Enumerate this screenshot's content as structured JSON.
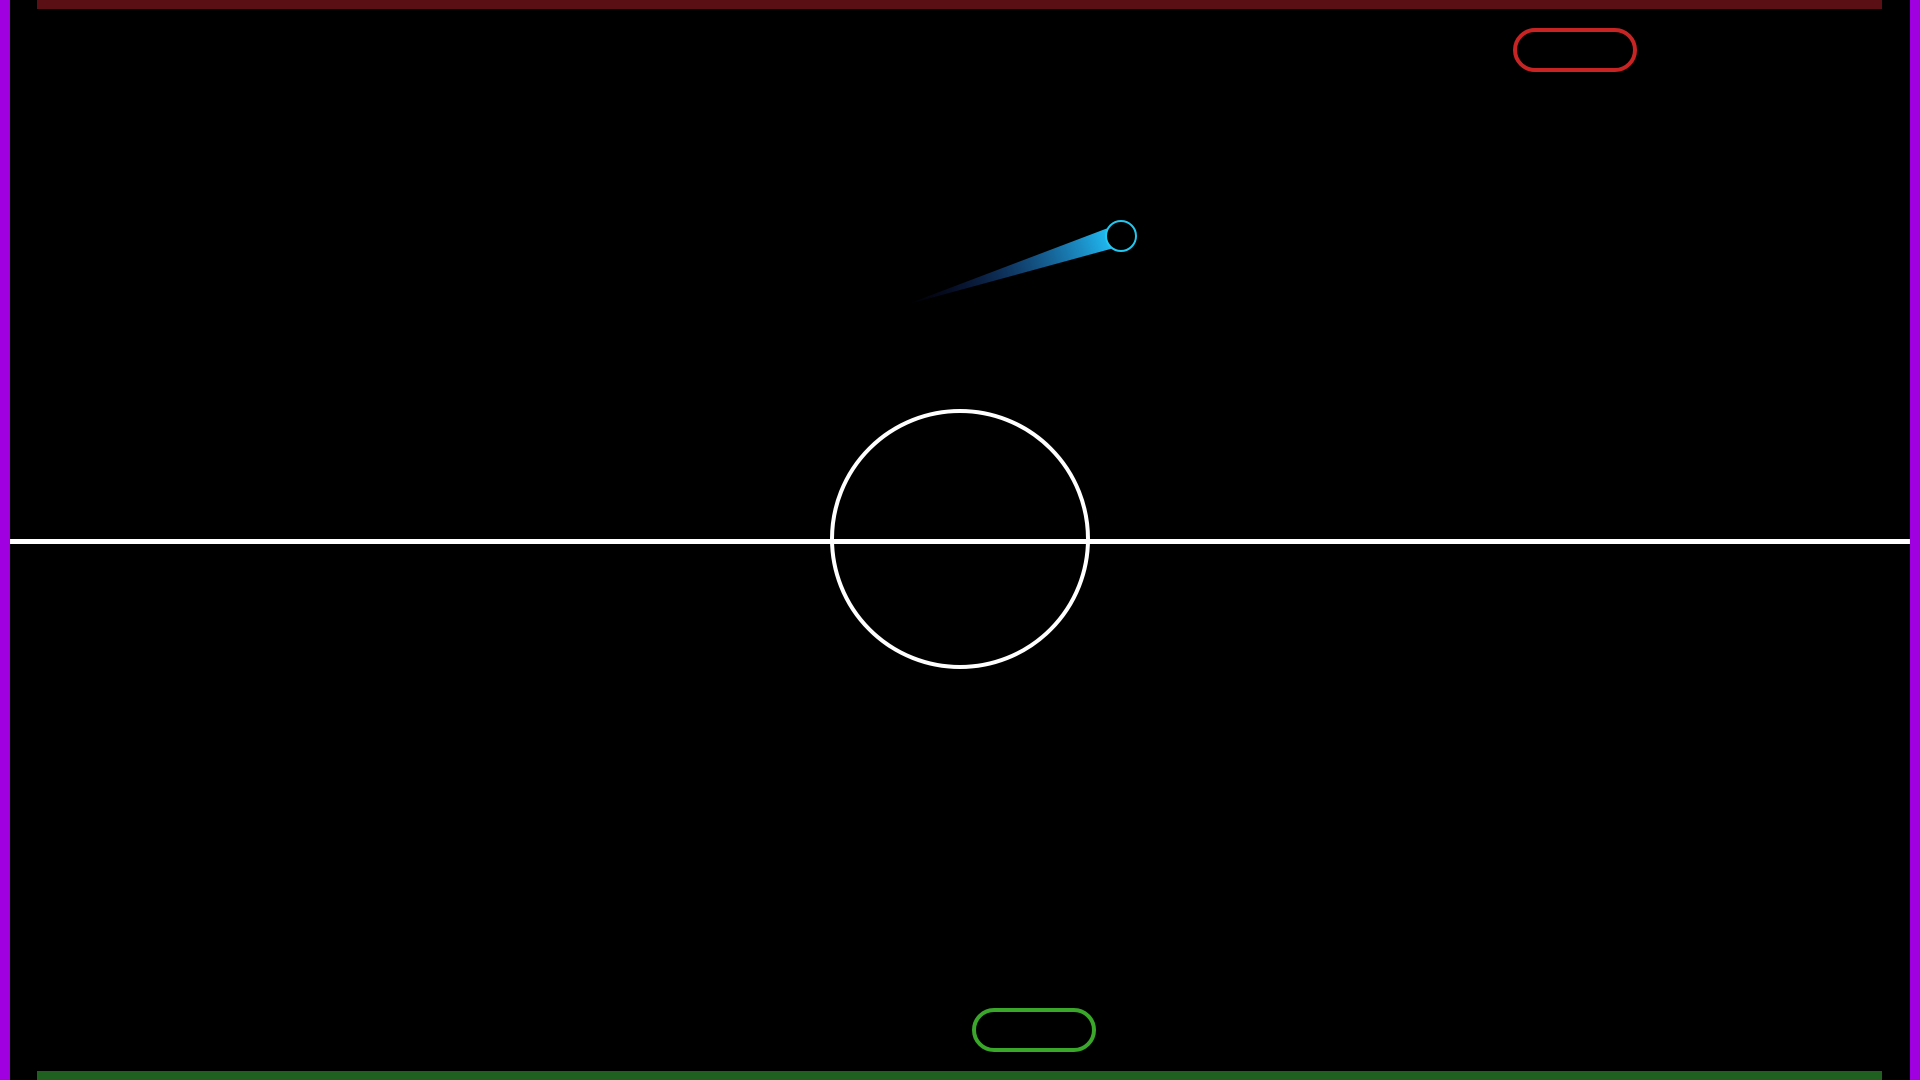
{
  "colors": {
    "background": "#000000",
    "side_walls": "#a000e0",
    "top_goal": "#5a0f14",
    "bottom_goal": "#1f5f1f",
    "opponent_paddle": "#c82424",
    "player_paddle": "#3aa62a",
    "ball": "#22c8f0",
    "trail_start": "#1a1a8a",
    "trail_end": "#20b8f0",
    "center_markings": "#ffffff"
  },
  "icons": {
    "ball": "ball-icon",
    "opponent_paddle": "opponent-paddle-icon",
    "player_paddle": "player-paddle-icon"
  }
}
